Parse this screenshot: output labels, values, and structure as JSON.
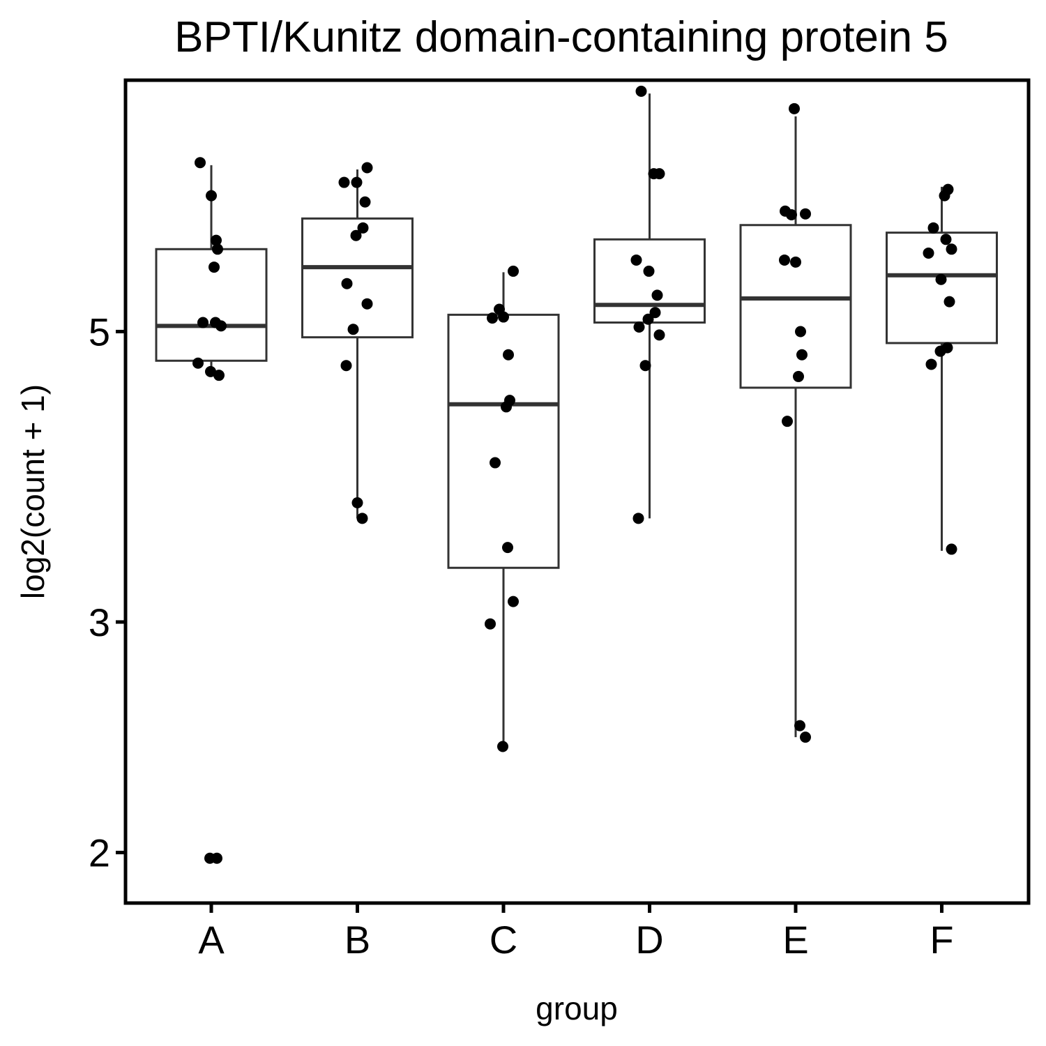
{
  "chart_data": {
    "type": "boxplot",
    "title": "BPTI/Kunitz domain-containing protein 5",
    "xlabel": "group",
    "ylabel": "log2(count + 1)",
    "y_scale": "log",
    "ylim": [
      1.83,
      7.78
    ],
    "y_ticks": [
      2,
      3,
      5
    ],
    "categories": [
      "A",
      "B",
      "C",
      "D",
      "E",
      "F"
    ],
    "boxes": [
      {
        "group": "A",
        "whisker_low": 4.65,
        "q1": 4.75,
        "median": 5.05,
        "q3": 5.78,
        "whisker_high": 6.7
      },
      {
        "group": "B",
        "whisker_low": 3.6,
        "q1": 4.95,
        "median": 5.6,
        "q3": 6.1,
        "whisker_high": 6.65
      },
      {
        "group": "C",
        "whisker_low": 2.42,
        "q1": 3.3,
        "median": 4.4,
        "q3": 5.15,
        "whisker_high": 5.55
      },
      {
        "group": "D",
        "whisker_low": 3.6,
        "q1": 5.08,
        "median": 5.24,
        "q3": 5.88,
        "whisker_high": 7.6
      },
      {
        "group": "E",
        "whisker_low": 2.45,
        "q1": 4.53,
        "median": 5.3,
        "q3": 6.03,
        "whisker_high": 7.3
      },
      {
        "group": "F",
        "whisker_low": 3.4,
        "q1": 4.9,
        "median": 5.52,
        "q3": 5.95,
        "whisker_high": 6.45
      }
    ],
    "points": [
      {
        "group": "A",
        "values": [
          6.73,
          6.35,
          5.87,
          5.78,
          5.6,
          5.08,
          5.08,
          5.05,
          4.73,
          4.66,
          4.63,
          1.98,
          1.98
        ]
      },
      {
        "group": "B",
        "values": [
          6.67,
          6.5,
          6.5,
          6.28,
          6.0,
          5.92,
          5.44,
          5.25,
          5.02,
          4.71,
          3.7,
          3.6
        ]
      },
      {
        "group": "C",
        "values": [
          5.56,
          5.2,
          5.12,
          5.13,
          4.8,
          4.43,
          4.38,
          3.97,
          3.42,
          3.11,
          2.99,
          2.41
        ]
      },
      {
        "group": "D",
        "values": [
          7.63,
          6.6,
          6.6,
          5.67,
          5.56,
          5.33,
          5.17,
          5.11,
          5.04,
          4.97,
          4.71,
          3.6
        ]
      },
      {
        "group": "E",
        "values": [
          7.4,
          6.18,
          6.15,
          6.14,
          5.67,
          5.65,
          5.0,
          4.8,
          4.62,
          4.27,
          2.5,
          2.45
        ]
      },
      {
        "group": "F",
        "values": [
          6.42,
          6.35,
          6.0,
          5.88,
          5.78,
          5.74,
          5.48,
          5.27,
          4.86,
          4.83,
          4.72,
          3.41
        ]
      }
    ],
    "grid": false,
    "legend": "none"
  },
  "colors": {
    "box_stroke": "#333333",
    "point_fill": "#000000",
    "background": "#ffffff"
  }
}
